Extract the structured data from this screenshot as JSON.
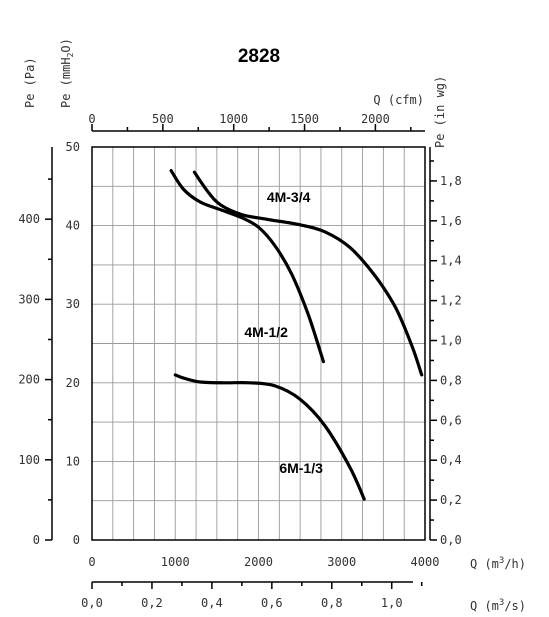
{
  "chart_data": {
    "type": "line",
    "title": "2828",
    "axes": {
      "x_primary": {
        "label": "Q (m",
        "label_sup": "3",
        "label_tail": "/h)",
        "min": 0,
        "max": 4000,
        "ticks": [
          "0",
          "1000",
          "2000",
          "3000",
          "4000"
        ]
      },
      "x_top": {
        "label": "Q (cfm)",
        "min": 0,
        "max": 2350,
        "ticks": [
          "0",
          "500",
          "1000",
          "1500",
          "2000"
        ]
      },
      "x_bottom": {
        "label": "Q (m",
        "label_sup": "3",
        "label_tail": "/s)",
        "min": 0,
        "max": 1.111,
        "ticks": [
          "0,0",
          "0,2",
          "0,4",
          "0,6",
          "0,8",
          "1,0"
        ]
      },
      "y_primary": {
        "label": "Pe (mmH",
        "label_sub": "2",
        "label_tail": "O)",
        "min": 0,
        "max": 50,
        "ticks": [
          "0",
          "10",
          "20",
          "30",
          "40",
          "50"
        ]
      },
      "y_pa": {
        "label": "Pe (Pa)",
        "min": 0,
        "max": 490,
        "ticks": [
          "0",
          "100",
          "200",
          "300",
          "400"
        ]
      },
      "y_inwg": {
        "label": "Pe (in wg)",
        "min": 0,
        "max": 1.97,
        "ticks": [
          "0,0",
          "0,2",
          "0,4",
          "0,6",
          "0,8",
          "1,0",
          "1,2",
          "1,4",
          "1,6",
          "1,8"
        ]
      }
    },
    "grid": true,
    "series": [
      {
        "name": "4M-3/4",
        "label_at": [
          2100,
          43
        ],
        "x": [
          1230,
          1400,
          1550,
          1800,
          2100,
          2500,
          2800,
          3100,
          3400,
          3650,
          3850,
          3960
        ],
        "y": [
          46.8,
          44.2,
          42.6,
          41.4,
          40.8,
          40.1,
          39.2,
          37.2,
          33.6,
          29.5,
          24.5,
          21.0
        ]
      },
      {
        "name": "4M-1/2",
        "label_at": [
          1830,
          25.8
        ],
        "x": [
          950,
          1100,
          1300,
          1550,
          1800,
          2000,
          2200,
          2400,
          2600,
          2780
        ],
        "y": [
          47.0,
          44.6,
          43.0,
          42.0,
          41.0,
          39.8,
          37.4,
          33.8,
          28.6,
          22.7
        ]
      },
      {
        "name": "6M-1/3",
        "label_at": [
          2250,
          8.5
        ],
        "x": [
          1000,
          1100,
          1300,
          1600,
          1900,
          2200,
          2500,
          2800,
          3100,
          3270
        ],
        "y": [
          21.0,
          20.6,
          20.1,
          20.0,
          20.0,
          19.6,
          17.9,
          14.5,
          9.2,
          5.2
        ]
      }
    ]
  }
}
